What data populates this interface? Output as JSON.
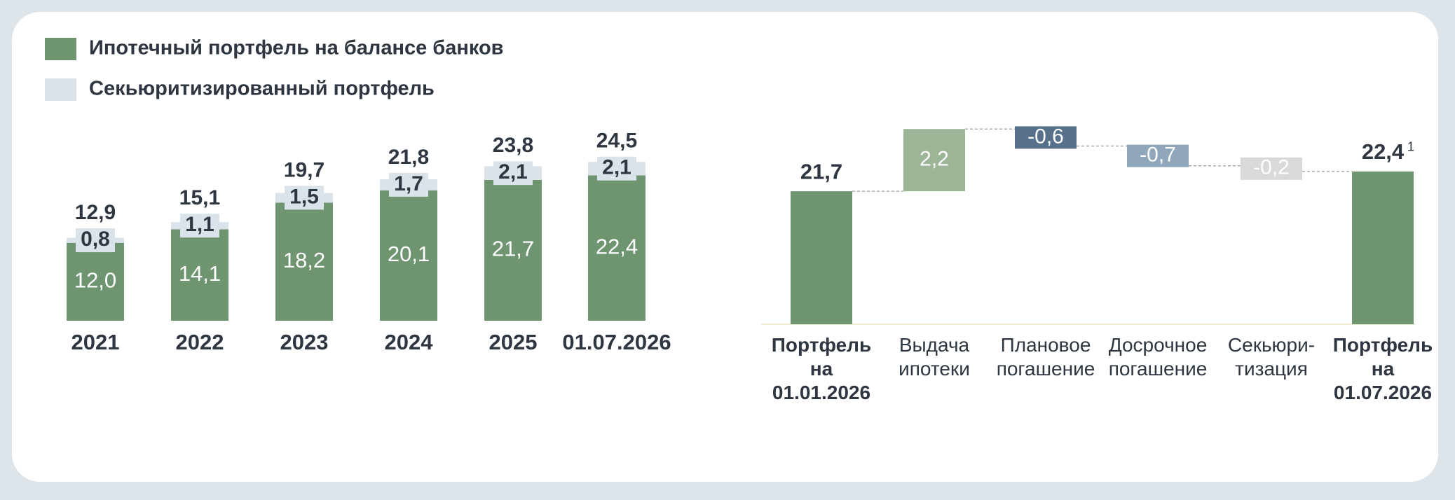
{
  "chart_data": [
    {
      "type": "stacked-bar",
      "categories": [
        "2021",
        "2022",
        "2023",
        "2024",
        "2025",
        "01.07.2026"
      ],
      "series": [
        {
          "name": "Ипотечный портфель на балансе банков",
          "color": "#6e9470",
          "values": [
            12.0,
            14.1,
            18.2,
            20.1,
            21.7,
            22.4
          ],
          "value_labels": [
            "12,0",
            "14,1",
            "18,2",
            "20,1",
            "21,7",
            "22,4"
          ]
        },
        {
          "name": "Секьюритизированный портфель",
          "color": "#dbe3ea",
          "values": [
            0.8,
            1.1,
            1.5,
            1.7,
            2.1,
            2.1
          ],
          "value_labels": [
            "0,8",
            "1,1",
            "1,5",
            "1,7",
            "2,1",
            "2,1"
          ]
        }
      ],
      "totals": [
        12.9,
        15.1,
        19.7,
        21.8,
        23.8,
        24.5
      ],
      "total_labels": [
        "12,9",
        "15,1",
        "19,7",
        "21,8",
        "23,8",
        "24,5"
      ],
      "ylim": [
        0,
        30
      ]
    },
    {
      "type": "waterfall",
      "categories": [
        "Портфель\nна\n01.01.2026",
        "Выдача\nипотеки",
        "Плановое\nпогашение",
        "Досрочное\nпогашение",
        "Секьюри-\nтизация",
        "Портфель\nна\n01.07.2026"
      ],
      "values": [
        21.7,
        2.2,
        -0.6,
        -0.7,
        -0.2,
        22.4
      ],
      "value_labels": [
        "21,7",
        "2,2",
        "-0,6",
        "-0,7",
        "-0,2",
        "22,4"
      ],
      "measure": [
        "absolute",
        "relative",
        "relative",
        "relative",
        "relative",
        "absolute"
      ],
      "colors": [
        "#6e9470",
        "#9db597",
        "#567189",
        "#8fa6bb",
        "#d9d9d9",
        "#6e9470"
      ],
      "footnote": "1",
      "ylim": [
        17,
        24.5
      ]
    }
  ]
}
